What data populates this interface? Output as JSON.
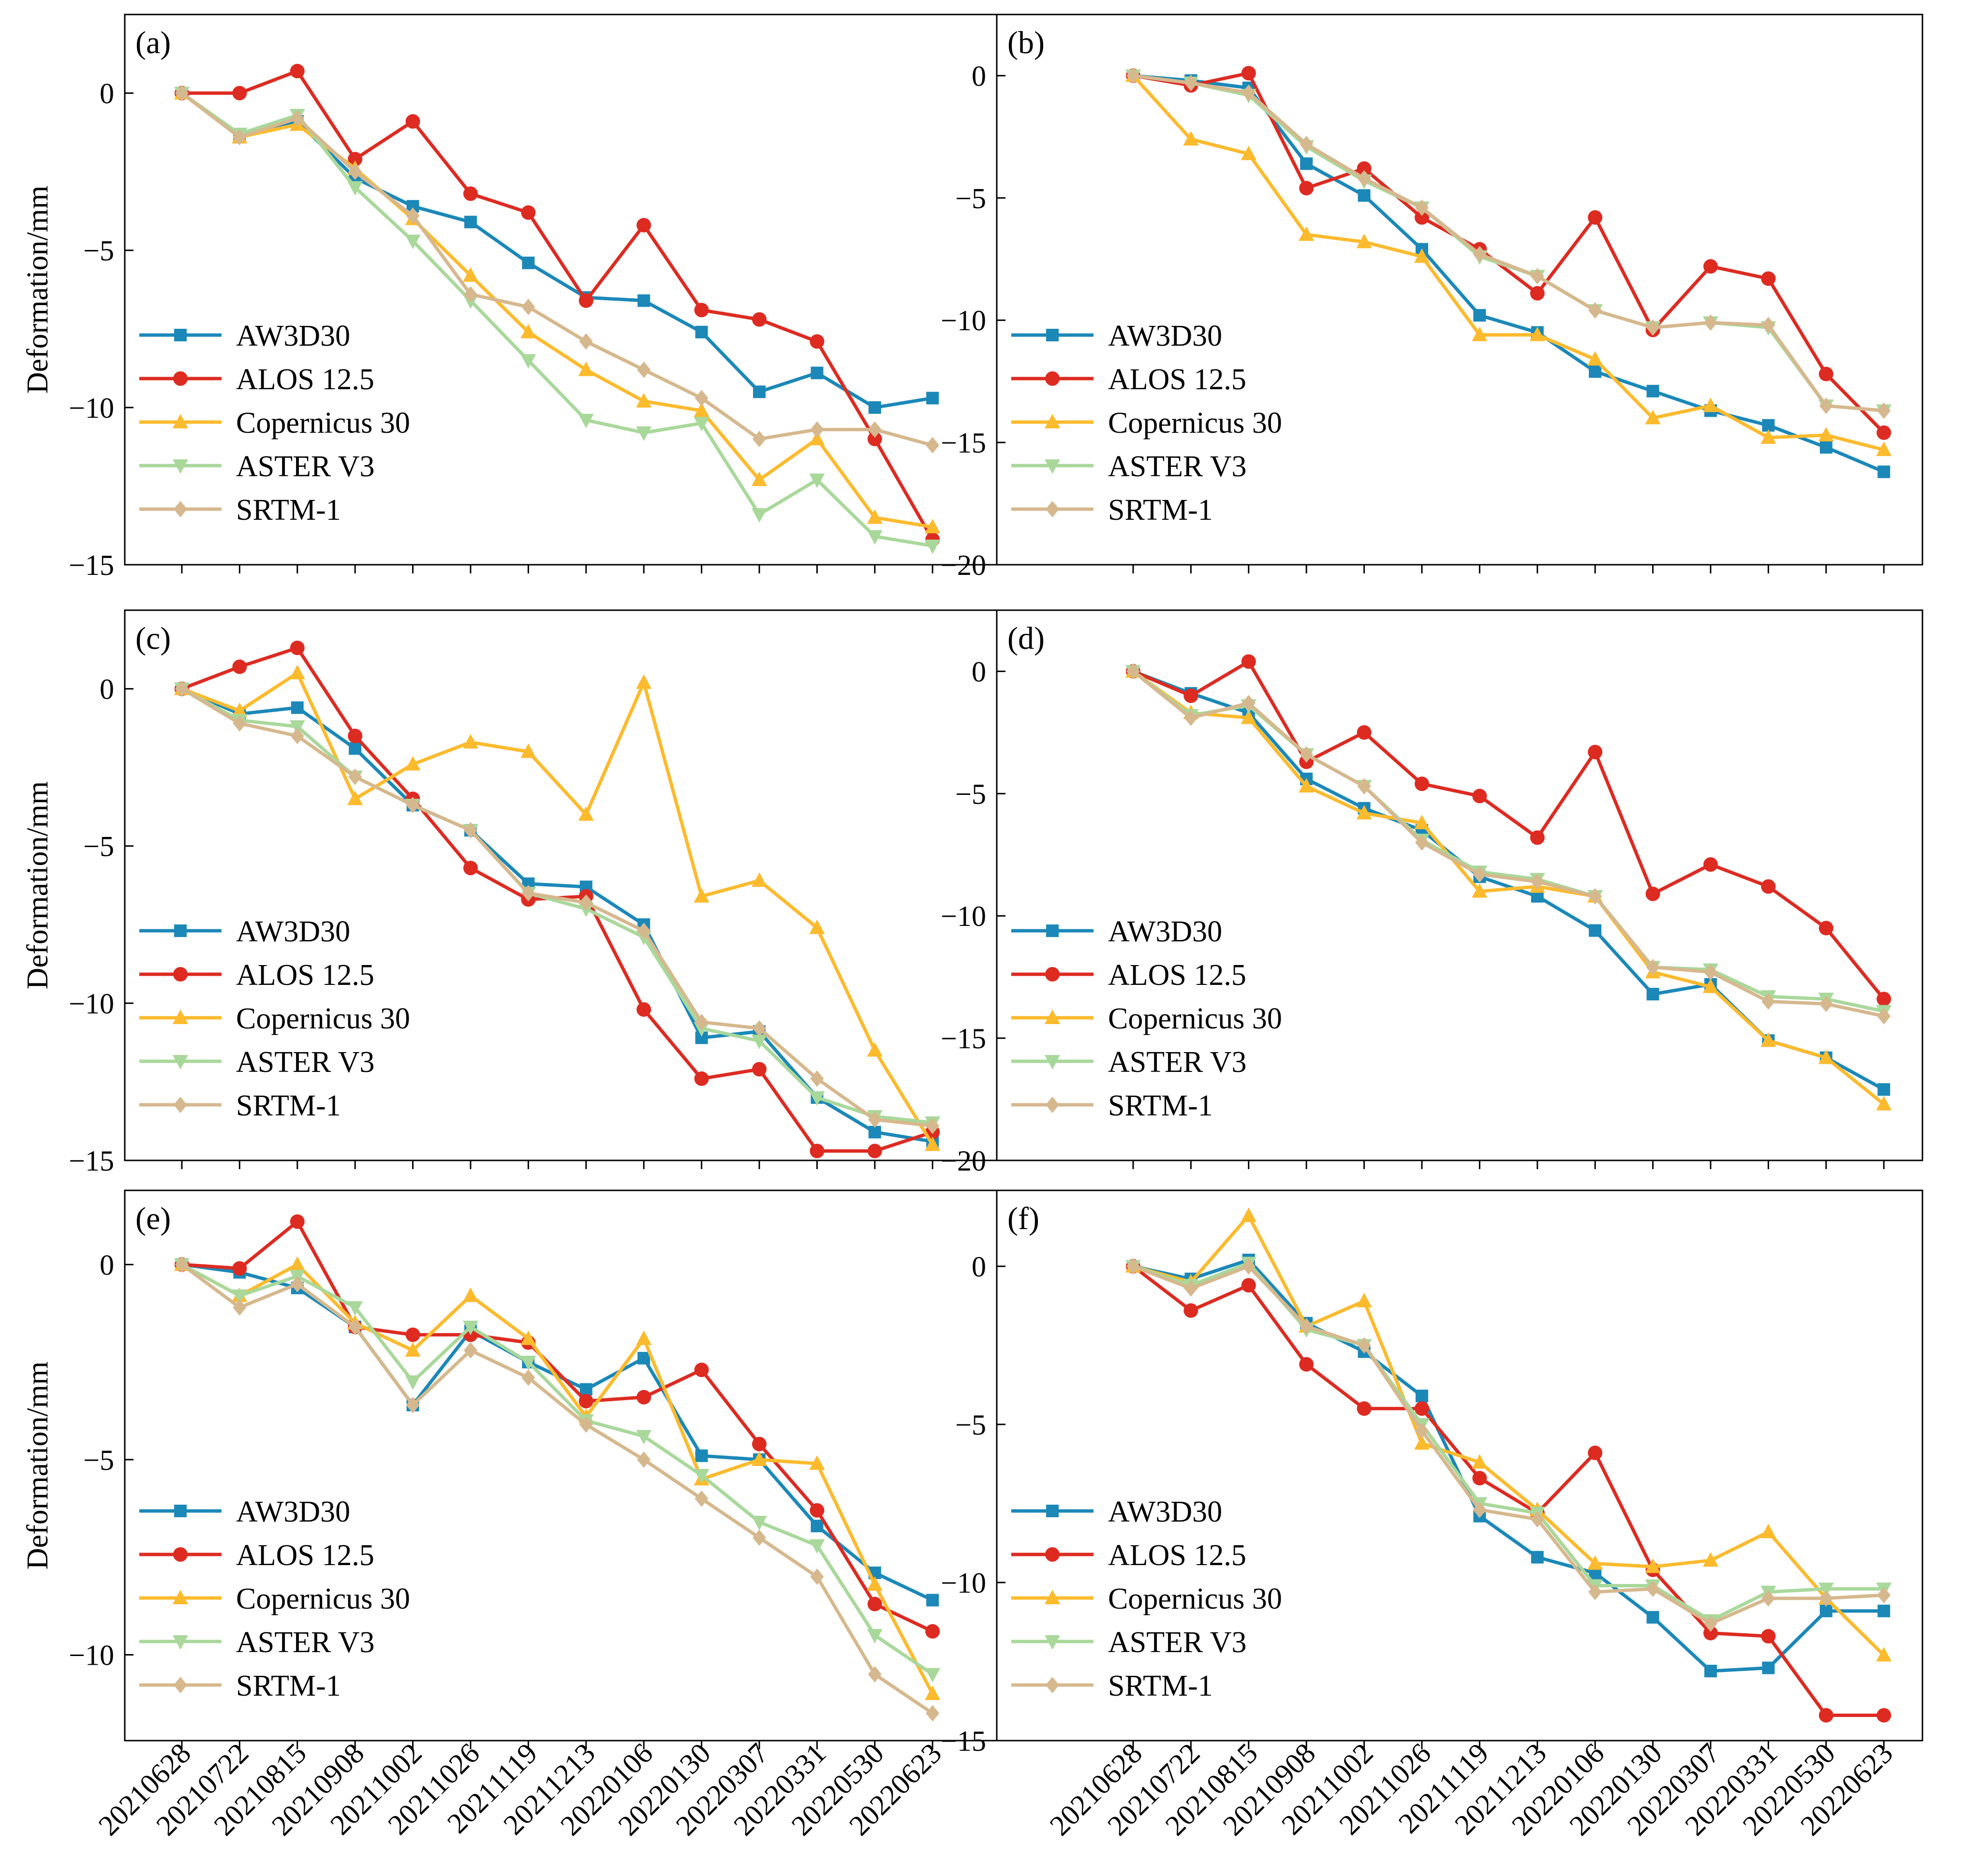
{
  "figure": {
    "xtick_labels": [
      "20210628",
      "20210722",
      "20210815",
      "20210908",
      "20211002",
      "20211026",
      "20211119",
      "20211213",
      "20220106",
      "20220130",
      "20220307",
      "20220331",
      "20220530",
      "20220623"
    ]
  },
  "colors": {
    "AW3D30": "#1b88b8",
    "ALOS 12.5": "#dd2b22",
    "Copernicus 30": "#fcba2d",
    "ASTER V3": "#a9d89b",
    "SRTM-1": "#d6b88e"
  },
  "markers": {
    "AW3D30": "square",
    "ALOS 12.5": "circle",
    "Copernicus 30": "triangle-up",
    "ASTER V3": "triangle-down",
    "SRTM-1": "diamond"
  },
  "chart_data": [
    {
      "type": "line",
      "panel_label": "(a)",
      "ylabel": "Deformation/mm",
      "ylim": [
        -15,
        2.5
      ],
      "yticks": [
        0,
        -5,
        -10,
        -15
      ],
      "ytick_labels": [
        "0",
        "−5",
        "−10",
        "−15"
      ],
      "legend": "lower-left",
      "categories": [
        "20210628",
        "20210722",
        "20210815",
        "20210908",
        "20211002",
        "20211026",
        "20211119",
        "20211213",
        "20220106",
        "20220130",
        "20220307",
        "20220331",
        "20220530",
        "20220623"
      ],
      "series": [
        {
          "name": "AW3D30",
          "values": [
            0,
            -1.4,
            -0.9,
            -2.7,
            -3.6,
            -4.1,
            -5.4,
            -6.5,
            -6.6,
            -7.6,
            -9.5,
            -8.9,
            -10.0,
            -9.7
          ]
        },
        {
          "name": "ALOS 12.5",
          "values": [
            0,
            0,
            0.7,
            -2.1,
            -0.9,
            -3.2,
            -3.8,
            -6.6,
            -4.2,
            -6.9,
            -7.2,
            -7.9,
            -11.0,
            -14.2
          ]
        },
        {
          "name": "Copernicus 30",
          "values": [
            0,
            -1.4,
            -1.0,
            -2.4,
            -4.0,
            -5.8,
            -7.6,
            -8.8,
            -9.8,
            -10.1,
            -12.3,
            -11.0,
            -13.5,
            -13.8
          ]
        },
        {
          "name": "ASTER V3",
          "values": [
            0,
            -1.3,
            -0.7,
            -3.0,
            -4.7,
            -6.6,
            -8.5,
            -10.4,
            -10.8,
            -10.5,
            -13.4,
            -12.3,
            -14.1,
            -14.4
          ]
        },
        {
          "name": "SRTM-1",
          "values": [
            0,
            -1.4,
            -0.8,
            -2.5,
            -3.9,
            -6.4,
            -6.8,
            -7.9,
            -8.8,
            -9.7,
            -11.0,
            -10.7,
            -10.7,
            -11.2
          ]
        }
      ]
    },
    {
      "type": "line",
      "panel_label": "(b)",
      "ylabel": "",
      "ylim": [
        -20,
        2.5
      ],
      "yticks": [
        0,
        -5,
        -10,
        -15,
        -20
      ],
      "ytick_labels": [
        "0",
        "−5",
        "−10",
        "−15",
        "−20"
      ],
      "legend": "lower-left",
      "categories": [
        "20210628",
        "20210722",
        "20210815",
        "20210908",
        "20211002",
        "20211026",
        "20211119",
        "20211213",
        "20220106",
        "20220130",
        "20220307",
        "20220331",
        "20220530",
        "20220623"
      ],
      "series": [
        {
          "name": "AW3D30",
          "values": [
            0,
            -0.2,
            -0.5,
            -3.6,
            -4.9,
            -7.1,
            -9.8,
            -10.5,
            -12.1,
            -12.9,
            -13.7,
            -14.3,
            -15.2,
            -16.2
          ]
        },
        {
          "name": "ALOS 12.5",
          "values": [
            0,
            -0.4,
            0.1,
            -4.6,
            -3.8,
            -5.8,
            -7.1,
            -8.9,
            -5.8,
            -10.4,
            -7.8,
            -8.3,
            -12.2,
            -14.6
          ]
        },
        {
          "name": "Copernicus 30",
          "values": [
            0,
            -2.6,
            -3.2,
            -6.5,
            -6.8,
            -7.4,
            -10.6,
            -10.6,
            -11.6,
            -14.0,
            -13.5,
            -14.8,
            -14.7,
            -15.3
          ]
        },
        {
          "name": "ASTER V3",
          "values": [
            0,
            -0.3,
            -0.8,
            -2.9,
            -4.3,
            -5.4,
            -7.4,
            -8.2,
            -9.6,
            -10.3,
            -10.1,
            -10.3,
            -13.5,
            -13.7
          ]
        },
        {
          "name": "SRTM-1",
          "values": [
            0,
            -0.3,
            -0.7,
            -2.8,
            -4.2,
            -5.4,
            -7.3,
            -8.2,
            -9.6,
            -10.3,
            -10.1,
            -10.2,
            -13.5,
            -13.7
          ]
        }
      ]
    },
    {
      "type": "line",
      "panel_label": "(c)",
      "ylabel": "Deformation/mm",
      "ylim": [
        -15,
        2.5
      ],
      "yticks": [
        0,
        -5,
        -10,
        -15
      ],
      "ytick_labels": [
        "0",
        "−5",
        "−10",
        "−15"
      ],
      "legend": "lower-left",
      "categories": [
        "20210628",
        "20210722",
        "20210815",
        "20210908",
        "20211002",
        "20211026",
        "20211119",
        "20211213",
        "20220106",
        "20220130",
        "20220307",
        "20220331",
        "20220530",
        "20220623"
      ],
      "series": [
        {
          "name": "AW3D30",
          "values": [
            0,
            -0.8,
            -0.6,
            -1.9,
            -3.7,
            -4.5,
            -6.2,
            -6.3,
            -7.5,
            -11.1,
            -10.9,
            -13.0,
            -14.1,
            -14.4
          ]
        },
        {
          "name": "ALOS 12.5",
          "values": [
            0,
            0.7,
            1.3,
            -1.5,
            -3.5,
            -5.7,
            -6.7,
            -6.6,
            -10.2,
            -12.4,
            -12.1,
            -14.7,
            -14.7,
            -14.1
          ]
        },
        {
          "name": "Copernicus 30",
          "values": [
            0,
            -0.7,
            0.5,
            -3.5,
            -2.4,
            -1.7,
            -2.0,
            -4.0,
            0.2,
            -6.6,
            -6.1,
            -7.6,
            -11.5,
            -14.5
          ]
        },
        {
          "name": "ASTER V3",
          "values": [
            0,
            -1.0,
            -1.2,
            -2.8,
            -3.7,
            -4.5,
            -6.5,
            -7.0,
            -7.9,
            -10.8,
            -11.2,
            -13.0,
            -13.6,
            -13.8
          ]
        },
        {
          "name": "SRTM-1",
          "values": [
            0,
            -1.1,
            -1.5,
            -2.8,
            -3.7,
            -4.5,
            -6.5,
            -6.8,
            -7.7,
            -10.6,
            -10.8,
            -12.4,
            -13.7,
            -13.9
          ]
        }
      ]
    },
    {
      "type": "line",
      "panel_label": "(d)",
      "ylabel": "",
      "ylim": [
        -20,
        2.5
      ],
      "yticks": [
        0,
        -5,
        -10,
        -15,
        -20
      ],
      "ytick_labels": [
        "0",
        "−5",
        "−10",
        "−15",
        "−20"
      ],
      "legend": "lower-left",
      "categories": [
        "20210628",
        "20210722",
        "20210815",
        "20210908",
        "20211002",
        "20211026",
        "20211119",
        "20211213",
        "20220106",
        "20220130",
        "20220307",
        "20220331",
        "20220530",
        "20220623"
      ],
      "series": [
        {
          "name": "AW3D30",
          "values": [
            0,
            -0.9,
            -1.7,
            -4.4,
            -5.6,
            -6.5,
            -8.4,
            -9.2,
            -10.6,
            -13.2,
            -12.8,
            -15.1,
            -15.8,
            -17.1
          ]
        },
        {
          "name": "ALOS 12.5",
          "values": [
            0,
            -1.0,
            0.4,
            -3.7,
            -2.5,
            -4.6,
            -5.1,
            -6.8,
            -3.3,
            -9.1,
            -7.9,
            -8.8,
            -10.5,
            -13.4
          ]
        },
        {
          "name": "Copernicus 30",
          "values": [
            0,
            -1.7,
            -1.9,
            -4.7,
            -5.8,
            -6.2,
            -9.0,
            -8.8,
            -9.2,
            -12.3,
            -12.9,
            -15.1,
            -15.8,
            -17.7
          ]
        },
        {
          "name": "ASTER V3",
          "values": [
            0,
            -1.8,
            -1.4,
            -3.4,
            -4.7,
            -6.9,
            -8.2,
            -8.5,
            -9.2,
            -12.1,
            -12.2,
            -13.3,
            -13.4,
            -13.9
          ]
        },
        {
          "name": "SRTM-1",
          "values": [
            0,
            -1.9,
            -1.3,
            -3.4,
            -4.7,
            -7.0,
            -8.3,
            -8.6,
            -9.2,
            -12.1,
            -12.3,
            -13.5,
            -13.6,
            -14.1
          ]
        }
      ]
    },
    {
      "type": "line",
      "panel_label": "(e)",
      "ylabel": "Deformation/mm",
      "ylim": [
        -12.2,
        1.9
      ],
      "yticks": [
        0,
        -5,
        -10
      ],
      "ytick_labels": [
        "0",
        "−5",
        "−10"
      ],
      "legend": "lower-left",
      "categories": [
        "20210628",
        "20210722",
        "20210815",
        "20210908",
        "20211002",
        "20211026",
        "20211119",
        "20211213",
        "20220106",
        "20220130",
        "20220307",
        "20220331",
        "20220530",
        "20220623"
      ],
      "series": [
        {
          "name": "AW3D30",
          "values": [
            0,
            -0.2,
            -0.6,
            -1.6,
            -3.6,
            -1.7,
            -2.5,
            -3.2,
            -2.4,
            -4.9,
            -5.0,
            -6.7,
            -7.9,
            -8.6
          ]
        },
        {
          "name": "ALOS 12.5",
          "values": [
            0,
            -0.1,
            1.1,
            -1.6,
            -1.8,
            -1.8,
            -2.0,
            -3.5,
            -3.4,
            -2.7,
            -4.6,
            -6.3,
            -8.7,
            -9.4
          ]
        },
        {
          "name": "Copernicus 30",
          "values": [
            0,
            -0.8,
            0.0,
            -1.5,
            -2.2,
            -0.8,
            -1.9,
            -3.9,
            -1.9,
            -5.5,
            -5.0,
            -5.1,
            -8.2,
            -11.0
          ]
        },
        {
          "name": "ASTER V3",
          "values": [
            0,
            -0.8,
            -0.3,
            -1.1,
            -3.0,
            -1.6,
            -2.5,
            -4.0,
            -4.4,
            -5.4,
            -6.6,
            -7.2,
            -9.5,
            -10.5
          ]
        },
        {
          "name": "SRTM-1",
          "values": [
            0,
            -1.1,
            -0.5,
            -1.6,
            -3.6,
            -2.2,
            -2.9,
            -4.1,
            -5.0,
            -6.0,
            -7.0,
            -8.0,
            -10.5,
            -11.5
          ]
        }
      ]
    },
    {
      "type": "line",
      "panel_label": "(f)",
      "ylabel": "",
      "ylim": [
        -15,
        2.4
      ],
      "yticks": [
        0,
        -5,
        -10,
        -15
      ],
      "ytick_labels": [
        "0",
        "−5",
        "−10",
        "−15"
      ],
      "legend": "lower-left",
      "categories": [
        "20210628",
        "20210722",
        "20210815",
        "20210908",
        "20211002",
        "20211026",
        "20211119",
        "20211213",
        "20220106",
        "20220130",
        "20220307",
        "20220331",
        "20220530",
        "20220623"
      ],
      "series": [
        {
          "name": "AW3D30",
          "values": [
            0,
            -0.4,
            0.2,
            -1.8,
            -2.7,
            -4.1,
            -7.9,
            -9.2,
            -9.7,
            -11.1,
            -12.8,
            -12.7,
            -10.9,
            -10.9
          ]
        },
        {
          "name": "ALOS 12.5",
          "values": [
            0,
            -1.4,
            -0.6,
            -3.1,
            -4.5,
            -4.5,
            -6.7,
            -7.8,
            -5.9,
            -9.6,
            -11.6,
            -11.7,
            -14.2,
            -14.2
          ]
        },
        {
          "name": "Copernicus 30",
          "values": [
            0,
            -0.5,
            1.6,
            -1.9,
            -1.1,
            -5.6,
            -6.2,
            -7.7,
            -9.4,
            -9.5,
            -9.3,
            -8.4,
            -10.5,
            -12.3
          ]
        },
        {
          "name": "ASTER V3",
          "values": [
            0,
            -0.6,
            0.1,
            -2.0,
            -2.5,
            -5.0,
            -7.5,
            -7.8,
            -10.1,
            -10.1,
            -11.2,
            -10.3,
            -10.2,
            -10.2
          ]
        },
        {
          "name": "SRTM-1",
          "values": [
            0,
            -0.7,
            0.0,
            -1.9,
            -2.5,
            -5.2,
            -7.7,
            -8.0,
            -10.3,
            -10.2,
            -11.3,
            -10.5,
            -10.5,
            -10.4
          ]
        }
      ]
    }
  ]
}
